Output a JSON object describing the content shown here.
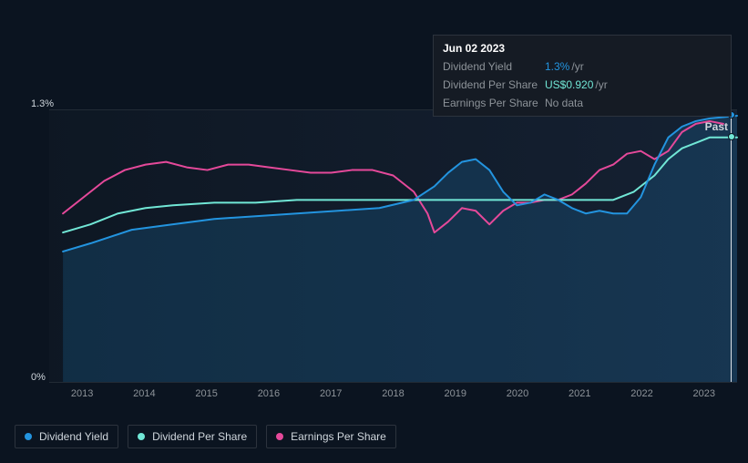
{
  "chart": {
    "type": "line",
    "background_color": "#0b1420",
    "grid_color": "#222b35",
    "cursor_color": "#dfe4e9",
    "past_label": "Past",
    "y_axis": {
      "max_label": "1.3%",
      "min_label": "0%",
      "ylim": [
        0,
        1.3
      ]
    },
    "x_axis": {
      "labels": [
        "2013",
        "2014",
        "2015",
        "2016",
        "2017",
        "2018",
        "2019",
        "2020",
        "2021",
        "2022",
        "2023"
      ],
      "color": "#8d9399",
      "fontsize": 11
    },
    "series": {
      "dividend_yield": {
        "label": "Dividend Yield",
        "color": "#2394df",
        "line_width": 2,
        "fill_opacity": 0.18,
        "points": [
          [
            0.02,
            0.48
          ],
          [
            0.06,
            0.51
          ],
          [
            0.12,
            0.56
          ],
          [
            0.18,
            0.58
          ],
          [
            0.24,
            0.6
          ],
          [
            0.3,
            0.61
          ],
          [
            0.36,
            0.62
          ],
          [
            0.42,
            0.63
          ],
          [
            0.48,
            0.64
          ],
          [
            0.53,
            0.67
          ],
          [
            0.56,
            0.72
          ],
          [
            0.58,
            0.77
          ],
          [
            0.6,
            0.81
          ],
          [
            0.62,
            0.82
          ],
          [
            0.64,
            0.78
          ],
          [
            0.66,
            0.7
          ],
          [
            0.68,
            0.65
          ],
          [
            0.7,
            0.66
          ],
          [
            0.72,
            0.69
          ],
          [
            0.74,
            0.67
          ],
          [
            0.76,
            0.64
          ],
          [
            0.78,
            0.62
          ],
          [
            0.8,
            0.63
          ],
          [
            0.82,
            0.62
          ],
          [
            0.84,
            0.62
          ],
          [
            0.86,
            0.68
          ],
          [
            0.88,
            0.8
          ],
          [
            0.9,
            0.9
          ],
          [
            0.92,
            0.94
          ],
          [
            0.94,
            0.96
          ],
          [
            0.96,
            0.97
          ],
          [
            0.98,
            0.975
          ],
          [
            1.0,
            0.98
          ]
        ]
      },
      "dividend_per_share": {
        "label": "Dividend Per Share",
        "color": "#71e7d6",
        "line_width": 2,
        "points": [
          [
            0.02,
            0.55
          ],
          [
            0.06,
            0.58
          ],
          [
            0.1,
            0.62
          ],
          [
            0.14,
            0.64
          ],
          [
            0.18,
            0.65
          ],
          [
            0.24,
            0.66
          ],
          [
            0.3,
            0.66
          ],
          [
            0.36,
            0.67
          ],
          [
            0.42,
            0.67
          ],
          [
            0.48,
            0.67
          ],
          [
            0.54,
            0.67
          ],
          [
            0.6,
            0.67
          ],
          [
            0.66,
            0.67
          ],
          [
            0.7,
            0.67
          ],
          [
            0.74,
            0.67
          ],
          [
            0.78,
            0.67
          ],
          [
            0.82,
            0.67
          ],
          [
            0.85,
            0.7
          ],
          [
            0.88,
            0.76
          ],
          [
            0.9,
            0.82
          ],
          [
            0.92,
            0.86
          ],
          [
            0.94,
            0.88
          ],
          [
            0.96,
            0.9
          ],
          [
            0.98,
            0.9
          ],
          [
            1.0,
            0.9
          ]
        ]
      },
      "earnings_per_share": {
        "label": "Earnings Per Share",
        "color": "#e5499a",
        "line_width": 2,
        "points": [
          [
            0.02,
            0.62
          ],
          [
            0.05,
            0.68
          ],
          [
            0.08,
            0.74
          ],
          [
            0.11,
            0.78
          ],
          [
            0.14,
            0.8
          ],
          [
            0.17,
            0.81
          ],
          [
            0.2,
            0.79
          ],
          [
            0.23,
            0.78
          ],
          [
            0.26,
            0.8
          ],
          [
            0.29,
            0.8
          ],
          [
            0.32,
            0.79
          ],
          [
            0.35,
            0.78
          ],
          [
            0.38,
            0.77
          ],
          [
            0.41,
            0.77
          ],
          [
            0.44,
            0.78
          ],
          [
            0.47,
            0.78
          ],
          [
            0.5,
            0.76
          ],
          [
            0.53,
            0.7
          ],
          [
            0.55,
            0.62
          ],
          [
            0.56,
            0.55
          ],
          [
            0.58,
            0.59
          ],
          [
            0.6,
            0.64
          ],
          [
            0.62,
            0.63
          ],
          [
            0.64,
            0.58
          ],
          [
            0.66,
            0.63
          ],
          [
            0.68,
            0.66
          ],
          [
            0.7,
            0.66
          ],
          [
            0.72,
            0.67
          ],
          [
            0.74,
            0.67
          ],
          [
            0.76,
            0.69
          ],
          [
            0.78,
            0.73
          ],
          [
            0.8,
            0.78
          ],
          [
            0.82,
            0.8
          ],
          [
            0.84,
            0.84
          ],
          [
            0.86,
            0.85
          ],
          [
            0.88,
            0.82
          ],
          [
            0.9,
            0.85
          ],
          [
            0.92,
            0.92
          ],
          [
            0.94,
            0.95
          ],
          [
            0.96,
            0.96
          ],
          [
            0.98,
            0.95
          ]
        ]
      }
    }
  },
  "tooltip": {
    "date": "Jun 02 2023",
    "rows": [
      {
        "label": "Dividend Yield",
        "value": "1.3%",
        "suffix": "/yr",
        "value_color": "#2394df"
      },
      {
        "label": "Dividend Per Share",
        "value": "US$0.920",
        "suffix": "/yr",
        "value_color": "#71e7d6"
      },
      {
        "label": "Earnings Per Share",
        "value": "No data",
        "suffix": "",
        "value_color": "#8d9399"
      }
    ]
  },
  "legend": [
    {
      "label": "Dividend Yield",
      "color": "#2394df"
    },
    {
      "label": "Dividend Per Share",
      "color": "#71e7d6"
    },
    {
      "label": "Earnings Per Share",
      "color": "#e5499a"
    }
  ],
  "markers": {
    "blue_y": 0.98,
    "teal_y": 0.9,
    "blue_color": "#2394df",
    "teal_color": "#71e7d6"
  }
}
